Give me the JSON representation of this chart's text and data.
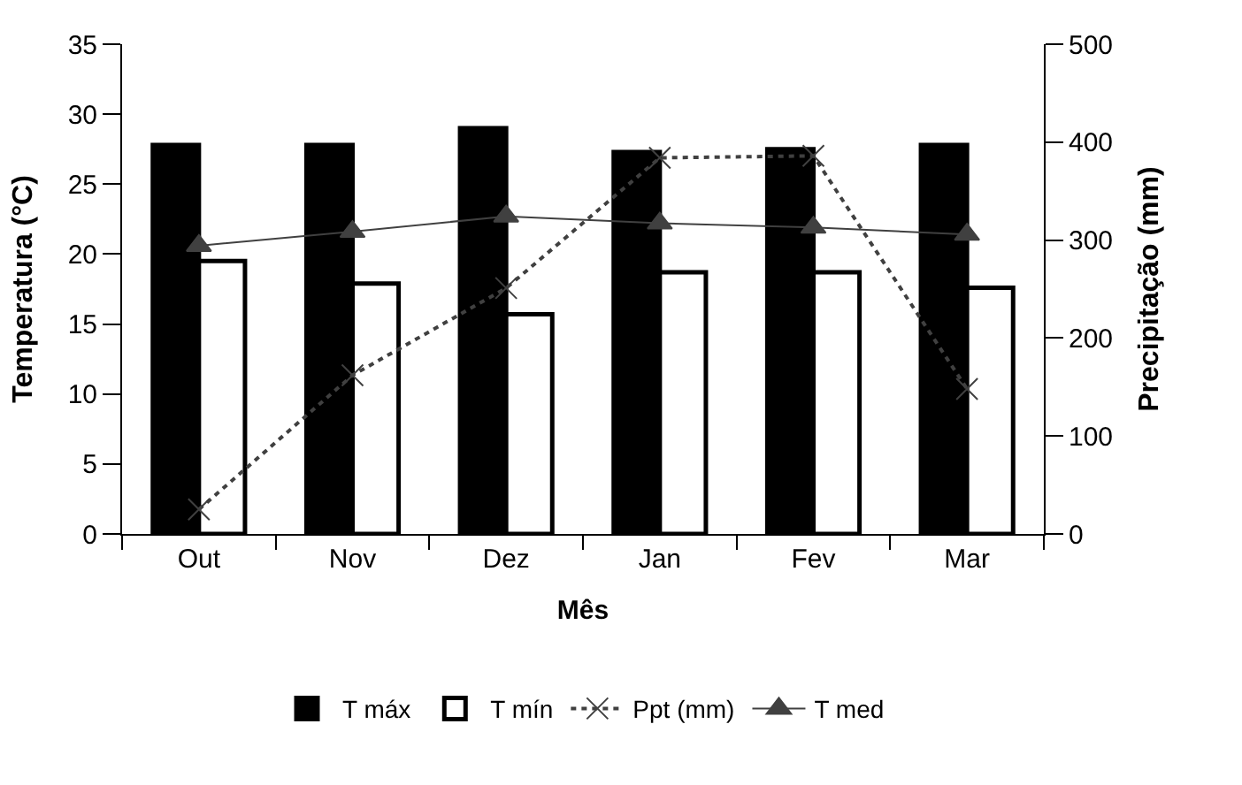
{
  "chart_data": {
    "type": "bar",
    "xlabel": "Mês",
    "ylabel": "Temperatura (°C)",
    "y2label": "Precipitação (mm)",
    "categories": [
      "Out",
      "Nov",
      "Dez",
      "Jan",
      "Fev",
      "Mar"
    ],
    "series": [
      {
        "name": "T máx",
        "color": "#000000",
        "values": [
          27.8,
          27.8,
          29.0,
          27.3,
          27.5,
          27.8
        ]
      },
      {
        "name": "T mín",
        "color": "#ffffff",
        "values": [
          19.5,
          17.9,
          15.7,
          18.7,
          18.7,
          17.6
        ]
      },
      {
        "name": "Ppt (mm)",
        "type": "line",
        "axis": "y2",
        "color": "#404040",
        "line_style": "dotted",
        "marker": "cross",
        "values": [
          25,
          162,
          251,
          384,
          386,
          148
        ]
      },
      {
        "name": "T med",
        "type": "line",
        "color": "#404040",
        "line_style": "solid",
        "marker": "triangle",
        "values": [
          20.6,
          21.6,
          22.7,
          22.2,
          21.9,
          21.4
        ]
      }
    ],
    "ylim": [
      0,
      35
    ],
    "yticks": [
      0,
      5,
      10,
      15,
      20,
      25,
      30,
      35
    ],
    "y2lim": [
      0,
      500
    ],
    "y2ticks": [
      0,
      100,
      200,
      300,
      400,
      500
    ],
    "legend": "bottom"
  }
}
